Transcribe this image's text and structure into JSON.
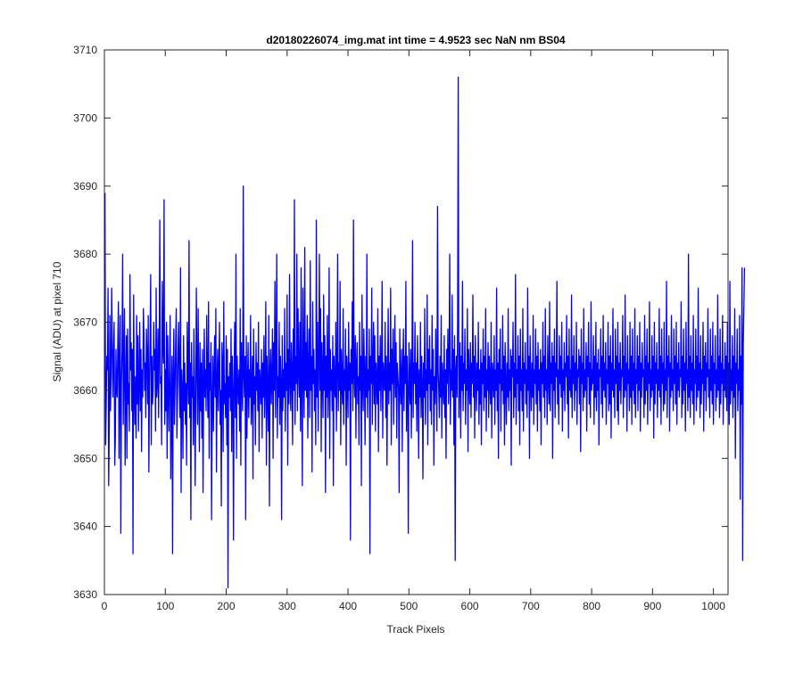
{
  "chart_data": {
    "type": "line",
    "title": "d20180226074_img.mat int time = 4.9523 sec  NaN nm BS04",
    "xlabel": "Track Pixels",
    "ylabel": "Signal (ADU) at pixel 710",
    "xlim": [
      0,
      1024
    ],
    "ylim": [
      3630,
      3710
    ],
    "x_ticks": [
      0,
      100,
      200,
      300,
      400,
      500,
      600,
      700,
      800,
      900,
      1000
    ],
    "y_ticks": [
      3630,
      3640,
      3650,
      3660,
      3670,
      3680,
      3690,
      3700,
      3710
    ],
    "grid": false,
    "series": [
      {
        "color": "#0000ff",
        "x_start": 1,
        "x_step": 1,
        "values": [
          3689,
          3652,
          3658,
          3665,
          3663,
          3675,
          3646,
          3655,
          3671,
          3657,
          3662,
          3675,
          3667,
          3659,
          3665,
          3670,
          3649,
          3653,
          3666,
          3660,
          3659,
          3667,
          3673,
          3650,
          3664,
          3671,
          3639,
          3661,
          3666,
          3680,
          3655,
          3664,
          3672,
          3649,
          3660,
          3668,
          3650,
          3669,
          3658,
          3661,
          3654,
          3677,
          3663,
          3667,
          3657,
          3666,
          3636,
          3674,
          3660,
          3655,
          3662,
          3653,
          3671,
          3658,
          3668,
          3654,
          3661,
          3670,
          3657,
          3666,
          3651,
          3663,
          3659,
          3672,
          3668,
          3660,
          3664,
          3656,
          3669,
          3665,
          3658,
          3671,
          3648,
          3661,
          3667,
          3677,
          3652,
          3665,
          3658,
          3660,
          3670,
          3663,
          3666,
          3654,
          3675,
          3659,
          3661,
          3669,
          3656,
          3666,
          3685,
          3661,
          3662,
          3652,
          3676,
          3667,
          3664,
          3688,
          3655,
          3663,
          3657,
          3670,
          3650,
          3668,
          3660,
          3654,
          3664,
          3671,
          3647,
          3658,
          3665,
          3636,
          3662,
          3669,
          3655,
          3660,
          3667,
          3672,
          3653,
          3659,
          3666,
          3670,
          3661,
          3656,
          3678,
          3645,
          3663,
          3660,
          3650,
          3668,
          3657,
          3664,
          3655,
          3661,
          3649,
          3670,
          3663,
          3658,
          3682,
          3656,
          3664,
          3641,
          3667,
          3659,
          3662,
          3652,
          3669,
          3661,
          3646,
          3658,
          3675,
          3663,
          3655,
          3672,
          3660,
          3651,
          3667,
          3657,
          3664,
          3653,
          3666,
          3645,
          3661,
          3669,
          3659,
          3663,
          3657,
          3671,
          3662,
          3656,
          3673,
          3650,
          3664,
          3660,
          3667,
          3641,
          3658,
          3665,
          3654,
          3662,
          3668,
          3659,
          3672,
          3648,
          3661,
          3666,
          3657,
          3663,
          3670,
          3655,
          3660,
          3643,
          3667,
          3664,
          3651,
          3673,
          3658,
          3661,
          3656,
          3668,
          3652,
          3666,
          3631,
          3662,
          3659,
          3664,
          3657,
          3669,
          3651,
          3665,
          3660,
          3638,
          3663,
          3670,
          3656,
          3680,
          3650,
          3665,
          3661,
          3658,
          3663,
          3654,
          3672,
          3649,
          3667,
          3660,
          3657,
          3690,
          3662,
          3659,
          3665,
          3641,
          3668,
          3653,
          3661,
          3667,
          3656,
          3663,
          3659,
          3671,
          3655,
          3660,
          3665,
          3647,
          3669,
          3658,
          3662,
          3652,
          3667,
          3660,
          3664,
          3657,
          3670,
          3651,
          3663,
          3661,
          3658,
          3666,
          3653,
          3664,
          3659,
          3668,
          3656,
          3661,
          3673,
          3649,
          3665,
          3660,
          3654,
          3671,
          3643,
          3663,
          3666,
          3658,
          3662,
          3669,
          3650,
          3667,
          3660,
          3676,
          3656,
          3664,
          3680,
          3653,
          3662,
          3659,
          3670,
          3655,
          3665,
          3661,
          3641,
          3668,
          3657,
          3663,
          3659,
          3672,
          3654,
          3664,
          3660,
          3674,
          3649,
          3666,
          3658,
          3677,
          3661,
          3657,
          3667,
          3663,
          3652,
          3669,
          3660,
          3688,
          3655,
          3665,
          3661,
          3680,
          3657,
          3672,
          3663,
          3659,
          3670,
          3654,
          3678,
          3660,
          3646,
          3675,
          3663,
          3656,
          3681,
          3660,
          3667,
          3659,
          3671,
          3653,
          3664,
          3669,
          3656,
          3679,
          3660,
          3665,
          3648,
          3673,
          3661,
          3666,
          3657,
          3663,
          3652,
          3685,
          3659,
          3670,
          3654,
          3664,
          3680,
          3660,
          3672,
          3651,
          3667,
          3662,
          3656,
          3674,
          3660,
          3668,
          3645,
          3665,
          3659,
          3671,
          3656,
          3661,
          3678,
          3650,
          3666,
          3660,
          3663,
          3657,
          3668,
          3646,
          3665,
          3661,
          3659,
          3670,
          3654,
          3663,
          3680,
          3657,
          3664,
          3660,
          3676,
          3652,
          3666,
          3661,
          3658,
          3672,
          3655,
          3663,
          3660,
          3669,
          3649,
          3665,
          3662,
          3656,
          3670,
          3660,
          3664,
          3638,
          3666,
          3661,
          3673,
          3657,
          3685,
          3662,
          3659,
          3668,
          3653,
          3664,
          3667,
          3658,
          3662,
          3652,
          3670,
          3660,
          3665,
          3646,
          3674,
          3661,
          3657,
          3669,
          3663,
          3652,
          3665,
          3659,
          3680,
          3656,
          3663,
          3660,
          3669,
          3636,
          3665,
          3661,
          3675,
          3655,
          3663,
          3670,
          3658,
          3668,
          3654,
          3664,
          3661,
          3658,
          3672,
          3651,
          3665,
          3660,
          3668,
          3657,
          3663,
          3676,
          3653,
          3664,
          3661,
          3660,
          3670,
          3656,
          3665,
          3649,
          3662,
          3672,
          3658,
          3664,
          3660,
          3675,
          3652,
          3666,
          3661,
          3669,
          3655,
          3663,
          3671,
          3659,
          3667,
          3653,
          3664,
          3662,
          3660,
          3645,
          3669,
          3661,
          3658,
          3666,
          3651,
          3663,
          3669,
          3657,
          3665,
          3661,
          3676,
          3654,
          3665,
          3660,
          3639,
          3667,
          3662,
          3658,
          3666,
          3653,
          3663,
          3682,
          3656,
          3664,
          3661,
          3670,
          3658,
          3664,
          3654,
          3668,
          3662,
          3650,
          3663,
          3659,
          3670,
          3656,
          3665,
          3661,
          3647,
          3664,
          3659,
          3672,
          3655,
          3663,
          3660,
          3674,
          3652,
          3666,
          3661,
          3668,
          3657,
          3663,
          3655,
          3671,
          3660,
          3666,
          3649,
          3662,
          3658,
          3669,
          3661,
          3654,
          3687,
          3663,
          3660,
          3656,
          3665,
          3659,
          3671,
          3653,
          3664,
          3661,
          3658,
          3668,
          3656,
          3663,
          3650,
          3666,
          3661,
          3669,
          3658,
          3664,
          3680,
          3655,
          3663,
          3660,
          3674,
          3659,
          3666,
          3652,
          3668,
          3635,
          3663,
          3665,
          3659,
          3670,
          3706,
          3656,
          3662,
          3667,
          3653,
          3665,
          3660,
          3676,
          3657,
          3664,
          3661,
          3669,
          3655,
          3663,
          3660,
          3672,
          3651,
          3666,
          3662,
          3658,
          3667,
          3656,
          3664,
          3661,
          3674,
          3659,
          3665,
          3653,
          3668,
          3662,
          3657,
          3664,
          3660,
          3670,
          3655,
          3663,
          3658,
          3666,
          3652,
          3664,
          3661,
          3669,
          3657,
          3665,
          3659,
          3672,
          3654,
          3663,
          3660,
          3667,
          3656,
          3665,
          3661,
          3658,
          3670,
          3653,
          3664,
          3662,
          3659,
          3668,
          3655,
          3663,
          3660,
          3675,
          3657,
          3664,
          3650,
          3666,
          3661,
          3669,
          3654,
          3663,
          3660,
          3671,
          3658,
          3665,
          3652,
          3667,
          3661,
          3655,
          3664,
          3659,
          3672,
          3657,
          3663,
          3660,
          3666,
          3649,
          3665,
          3662,
          3670,
          3656,
          3664,
          3659,
          3677,
          3655,
          3663,
          3661,
          3668,
          3657,
          3665,
          3652,
          3669,
          3660,
          3663,
          3657,
          3672,
          3654,
          3664,
          3661,
          3667,
          3658,
          3663,
          3656,
          3675,
          3660,
          3665,
          3650,
          3668,
          3662,
          3657,
          3664,
          3659,
          3671,
          3655,
          3663,
          3661,
          3669,
          3658,
          3665,
          3654,
          3667,
          3660,
          3663,
          3657,
          3666,
          3652,
          3664,
          3661,
          3670,
          3659,
          3665,
          3656,
          3672,
          3660,
          3663,
          3655,
          3668,
          3662,
          3658,
          3673,
          3657,
          3664,
          3661,
          3667,
          3650,
          3665,
          3660,
          3669,
          3656,
          3664,
          3662,
          3676,
          3658,
          3663,
          3655,
          3668,
          3661,
          3665,
          3659,
          3670,
          3654,
          3663,
          3660,
          3667,
          3657,
          3664,
          3662,
          3671,
          3658,
          3665,
          3653,
          3669,
          3660,
          3663,
          3659,
          3674,
          3656,
          3665,
          3661,
          3668,
          3657,
          3664,
          3660,
          3670,
          3655,
          3663,
          3662,
          3666,
          3658,
          3665,
          3651,
          3669,
          3661,
          3664,
          3657,
          3672,
          3659,
          3663,
          3660,
          3667,
          3654,
          3665,
          3662,
          3670,
          3658,
          3664,
          3656,
          3673,
          3660,
          3663,
          3661,
          3668,
          3655,
          3665,
          3659,
          3670,
          3657,
          3664,
          3660,
          3666,
          3652,
          3663,
          3662,
          3669,
          3658,
          3665,
          3656,
          3671,
          3660,
          3664,
          3659,
          3667,
          3655,
          3663,
          3661,
          3670,
          3657,
          3665,
          3658,
          3668,
          3653,
          3664,
          3660,
          3672,
          3659,
          3663,
          3656,
          3669,
          3661,
          3665,
          3657,
          3670,
          3655,
          3664,
          3660,
          3667,
          3658,
          3663,
          3662,
          3671,
          3656,
          3665,
          3659,
          3674,
          3660,
          3664,
          3654,
          3668,
          3661,
          3663,
          3657,
          3670,
          3659,
          3665,
          3655,
          3669,
          3660,
          3664,
          3658,
          3672,
          3656,
          3663,
          3661,
          3668,
          3657,
          3665,
          3660,
          3670,
          3654,
          3664,
          3659,
          3667,
          3662,
          3663,
          3656,
          3671,
          3658,
          3665,
          3660,
          3669,
          3655,
          3664,
          3661,
          3673,
          3657,
          3663,
          3659,
          3668,
          3660,
          3665,
          3653,
          3670,
          3658,
          3664,
          3661,
          3667,
          3656,
          3663,
          3660,
          3672,
          3659,
          3665,
          3655,
          3669,
          3661,
          3664,
          3657,
          3670,
          3658,
          3663,
          3660,
          3676,
          3656,
          3665,
          3662,
          3668,
          3654,
          3664,
          3659,
          3671,
          3660,
          3663,
          3657,
          3669,
          3661,
          3665,
          3658,
          3670,
          3655,
          3664,
          3660,
          3667,
          3659,
          3663,
          3662,
          3673,
          3656,
          3665,
          3658,
          3669,
          3660,
          3664,
          3654,
          3670,
          3661,
          3663,
          3657,
          3680,
          3659,
          3665,
          3656,
          3668,
          3660,
          3664,
          3658,
          3671,
          3655,
          3663,
          3661,
          3669,
          3657,
          3665,
          3659,
          3675,
          3660,
          3664,
          3656,
          3668,
          3658,
          3663,
          3661,
          3670,
          3654,
          3665,
          3660,
          3667,
          3657,
          3664,
          3662,
          3672,
          3659,
          3663,
          3656,
          3669,
          3660,
          3665,
          3658,
          3670,
          3655,
          3664,
          3661,
          3668,
          3657,
          3663,
          3659,
          3674,
          3660,
          3665,
          3656,
          3669,
          3658,
          3664,
          3661,
          3671,
          3655,
          3663,
          3660,
          3667,
          3659,
          3665,
          3657,
          3670,
          3661,
          3664,
          3655,
          3676,
          3658,
          3663,
          3660,
          3668,
          3656,
          3665,
          3659,
          3672,
          3650,
          3664,
          3661,
          3669,
          3657,
          3663,
          3660,
          3671,
          3644,
          3665,
          3658,
          3678,
          3635,
          3667,
          3672,
          3678
        ]
      }
    ]
  }
}
